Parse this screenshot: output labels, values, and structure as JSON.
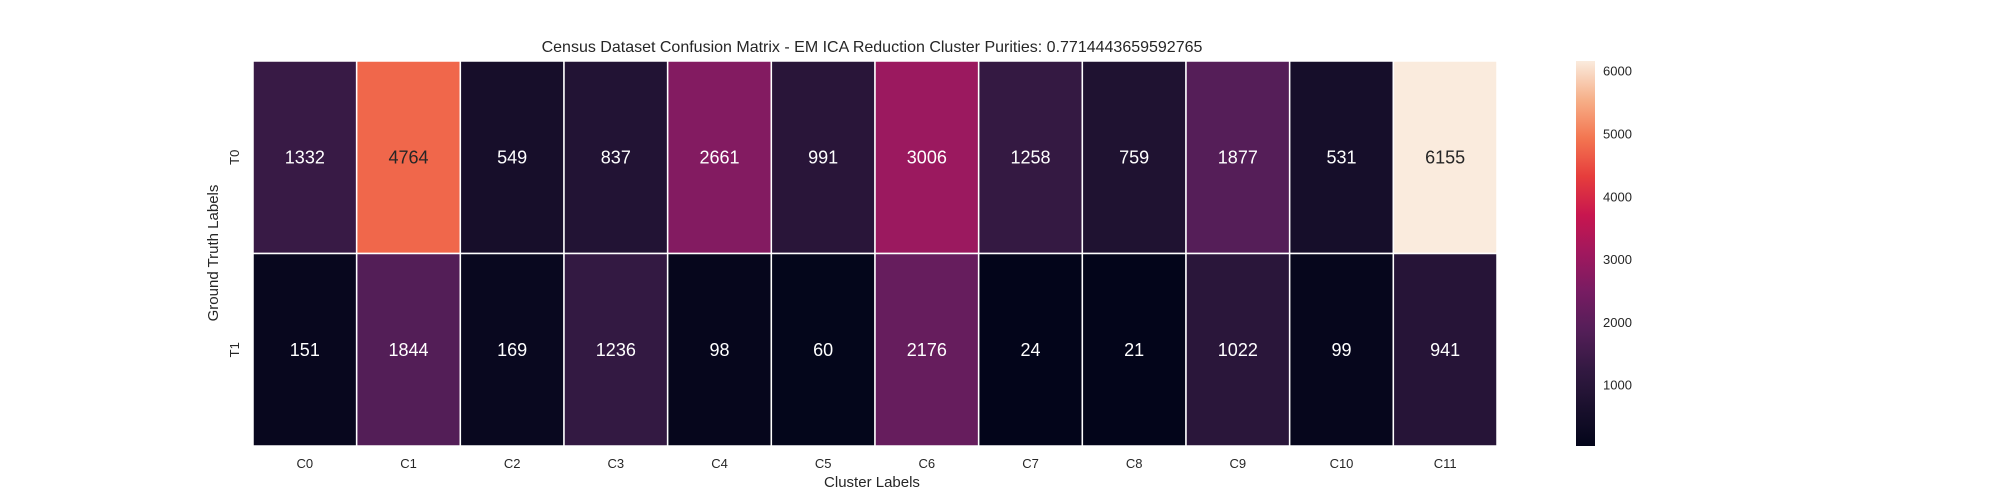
{
  "chart_data": {
    "type": "heatmap",
    "title": "Census Dataset Confusion Matrix - EM ICA Reduction Cluster Purities: 0.7714443659592765",
    "xlabel": "Cluster Labels",
    "ylabel": "Ground Truth Labels",
    "x_categories": [
      "C0",
      "C1",
      "C2",
      "C3",
      "C4",
      "C5",
      "C6",
      "C7",
      "C8",
      "C9",
      "C10",
      "C11"
    ],
    "y_categories": [
      "T0",
      "T1"
    ],
    "values": [
      [
        1332,
        4764,
        549,
        837,
        2661,
        991,
        3006,
        1258,
        759,
        1877,
        531,
        6155
      ],
      [
        151,
        1844,
        169,
        1236,
        98,
        60,
        2176,
        24,
        21,
        1022,
        99,
        941
      ]
    ],
    "colorbar": {
      "min": 21,
      "max": 6155,
      "ticks": [
        1000,
        2000,
        3000,
        4000,
        5000,
        6000
      ],
      "tick_labels": [
        "1000",
        "2000",
        "3000",
        "4000",
        "5000",
        "6000"
      ]
    },
    "colormap": "rocket"
  }
}
